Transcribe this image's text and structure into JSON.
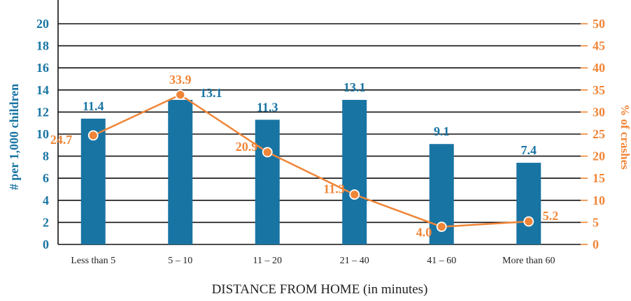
{
  "chart_data": {
    "type": "bar",
    "categories": [
      "Less than 5",
      "5 – 10",
      "11 – 20",
      "21 – 40",
      "41 – 60",
      "More than 60"
    ],
    "xlabel": "DISTANCE FROM HOME (in minutes)",
    "ylabel": "# per 1,000 children",
    "y2label": "% of crashes",
    "ylim": [
      0,
      22
    ],
    "y2lim": [
      0,
      55
    ],
    "yticks": [
      0,
      2,
      4,
      6,
      8,
      10,
      12,
      14,
      16,
      18,
      20
    ],
    "y2ticks": [
      0,
      5,
      10,
      15,
      20,
      25,
      30,
      35,
      40,
      45,
      50
    ],
    "grid": true,
    "series": [
      {
        "type": "bar",
        "axis": "left",
        "values": [
          11.4,
          13.1,
          11.3,
          13.1,
          9.1,
          7.4
        ],
        "labels": [
          "11.4",
          "13.1",
          "11.3",
          "13.1",
          "9.1",
          "7.4"
        ],
        "color": "#1874a3"
      },
      {
        "type": "line",
        "axis": "right",
        "values": [
          24.7,
          33.9,
          20.9,
          11.3,
          4.0,
          5.2
        ],
        "labels": [
          "24.7",
          "33.9",
          "20.9",
          "11.3",
          "4.0",
          "5.2"
        ],
        "color": "#f08537"
      }
    ]
  }
}
